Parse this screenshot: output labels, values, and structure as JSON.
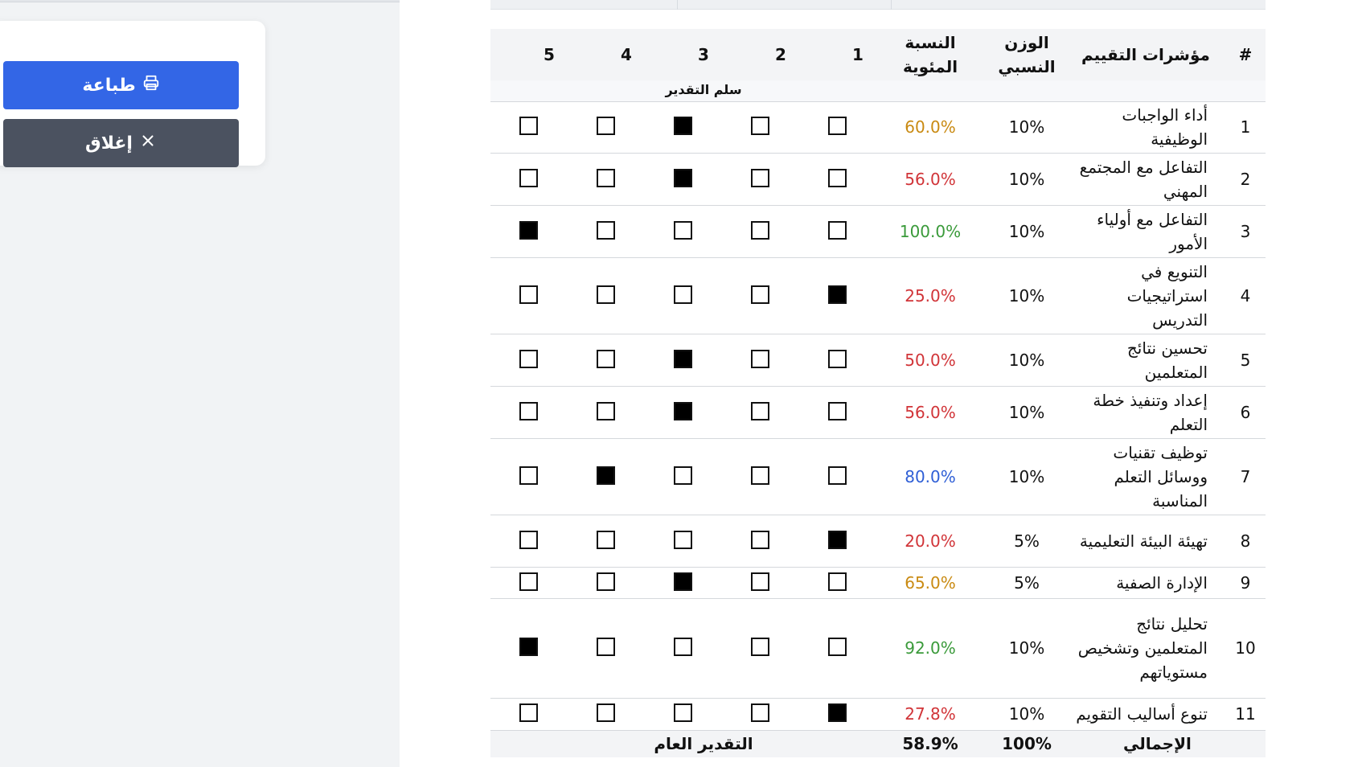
{
  "actions": {
    "print_label": "طباعة",
    "close_label": "إغلاق"
  },
  "table": {
    "headers": {
      "number": "#",
      "indicator": "مؤشرات التقييم",
      "weight": "الوزن النسبي",
      "percentage": "النسبة المئوية",
      "scale_points": [
        "1",
        "2",
        "3",
        "4",
        "5"
      ]
    },
    "scale_caption": "سلم التقدير",
    "rows": [
      {
        "no": "1",
        "indicator": "أداء الواجبات الوظيفية",
        "weight": "10%",
        "percentage": "60.0%",
        "pct_color": "#c98a12",
        "rating": 3
      },
      {
        "no": "2",
        "indicator": "التفاعل مع المجتمع المهني",
        "weight": "10%",
        "percentage": "56.0%",
        "pct_color": "#d13438",
        "rating": 3
      },
      {
        "no": "3",
        "indicator": "التفاعل مع أولياء الأمور",
        "weight": "10%",
        "percentage": "100.0%",
        "pct_color": "#3a9a3a",
        "rating": 5
      },
      {
        "no": "4",
        "indicator": "التنويع في استراتيجيات التدريس",
        "weight": "10%",
        "percentage": "25.0%",
        "pct_color": "#d13438",
        "rating": 1
      },
      {
        "no": "5",
        "indicator": "تحسين نتائج المتعلمين",
        "weight": "10%",
        "percentage": "50.0%",
        "pct_color": "#d13438",
        "rating": 3
      },
      {
        "no": "6",
        "indicator": "إعداد وتنفيذ خطة التعلم",
        "weight": "10%",
        "percentage": "56.0%",
        "pct_color": "#d13438",
        "rating": 3
      },
      {
        "no": "7",
        "indicator": "توظيف تقنيات ووسائل التعلم المناسبة",
        "weight": "10%",
        "percentage": "80.0%",
        "pct_color": "#2f5fd6",
        "rating": 4
      },
      {
        "no": "8",
        "indicator": "تهيئة البيئة التعليمية",
        "weight": "5%",
        "percentage": "20.0%",
        "pct_color": "#d13438",
        "rating": 1
      },
      {
        "no": "9",
        "indicator": "الإدارة الصفية",
        "weight": "5%",
        "percentage": "65.0%",
        "pct_color": "#c98a12",
        "rating": 3
      },
      {
        "no": "10",
        "indicator": "تحليل نتائج المتعلمين وتشخيص مستوياتهم",
        "weight": "10%",
        "percentage": "92.0%",
        "pct_color": "#3a9a3a",
        "rating": 5
      },
      {
        "no": "11",
        "indicator": "تنوع أساليب التقويم",
        "weight": "10%",
        "percentage": "27.8%",
        "pct_color": "#d13438",
        "rating": 1
      }
    ],
    "footer": {
      "total_label": "الإجمالي",
      "total_weight": "100%",
      "total_percentage": "58.9%",
      "overall_label": "التقدير العام"
    }
  }
}
